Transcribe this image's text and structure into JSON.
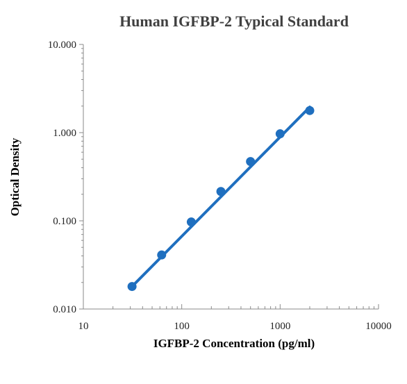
{
  "chart_data": {
    "type": "scatter",
    "title": "Human IGFBP-2 Typical Standard",
    "xlabel": "IGFBP-2 Concentration (pg/ml)",
    "ylabel": "Optical Density",
    "x_scale": "log",
    "y_scale": "log",
    "xlim": [
      10,
      10000
    ],
    "ylim": [
      0.01,
      10
    ],
    "x_ticks": [
      "10",
      "100",
      "1000",
      "10000"
    ],
    "y_ticks": [
      "10.000",
      "1.000",
      "0.100",
      "0.010"
    ],
    "grid": false,
    "legend": "none",
    "series": [
      {
        "points": [
          {
            "x": 31.25,
            "y": 0.018
          },
          {
            "x": 62.5,
            "y": 0.041
          },
          {
            "x": 125,
            "y": 0.097
          },
          {
            "x": 250,
            "y": 0.215
          },
          {
            "x": 500,
            "y": 0.47
          },
          {
            "x": 1000,
            "y": 0.97
          },
          {
            "x": 2000,
            "y": 1.78
          }
        ],
        "fit_line": {
          "x": [
            31.25,
            2000
          ],
          "y": [
            0.018,
            1.95
          ]
        },
        "color": "#1f6fbf"
      }
    ]
  }
}
